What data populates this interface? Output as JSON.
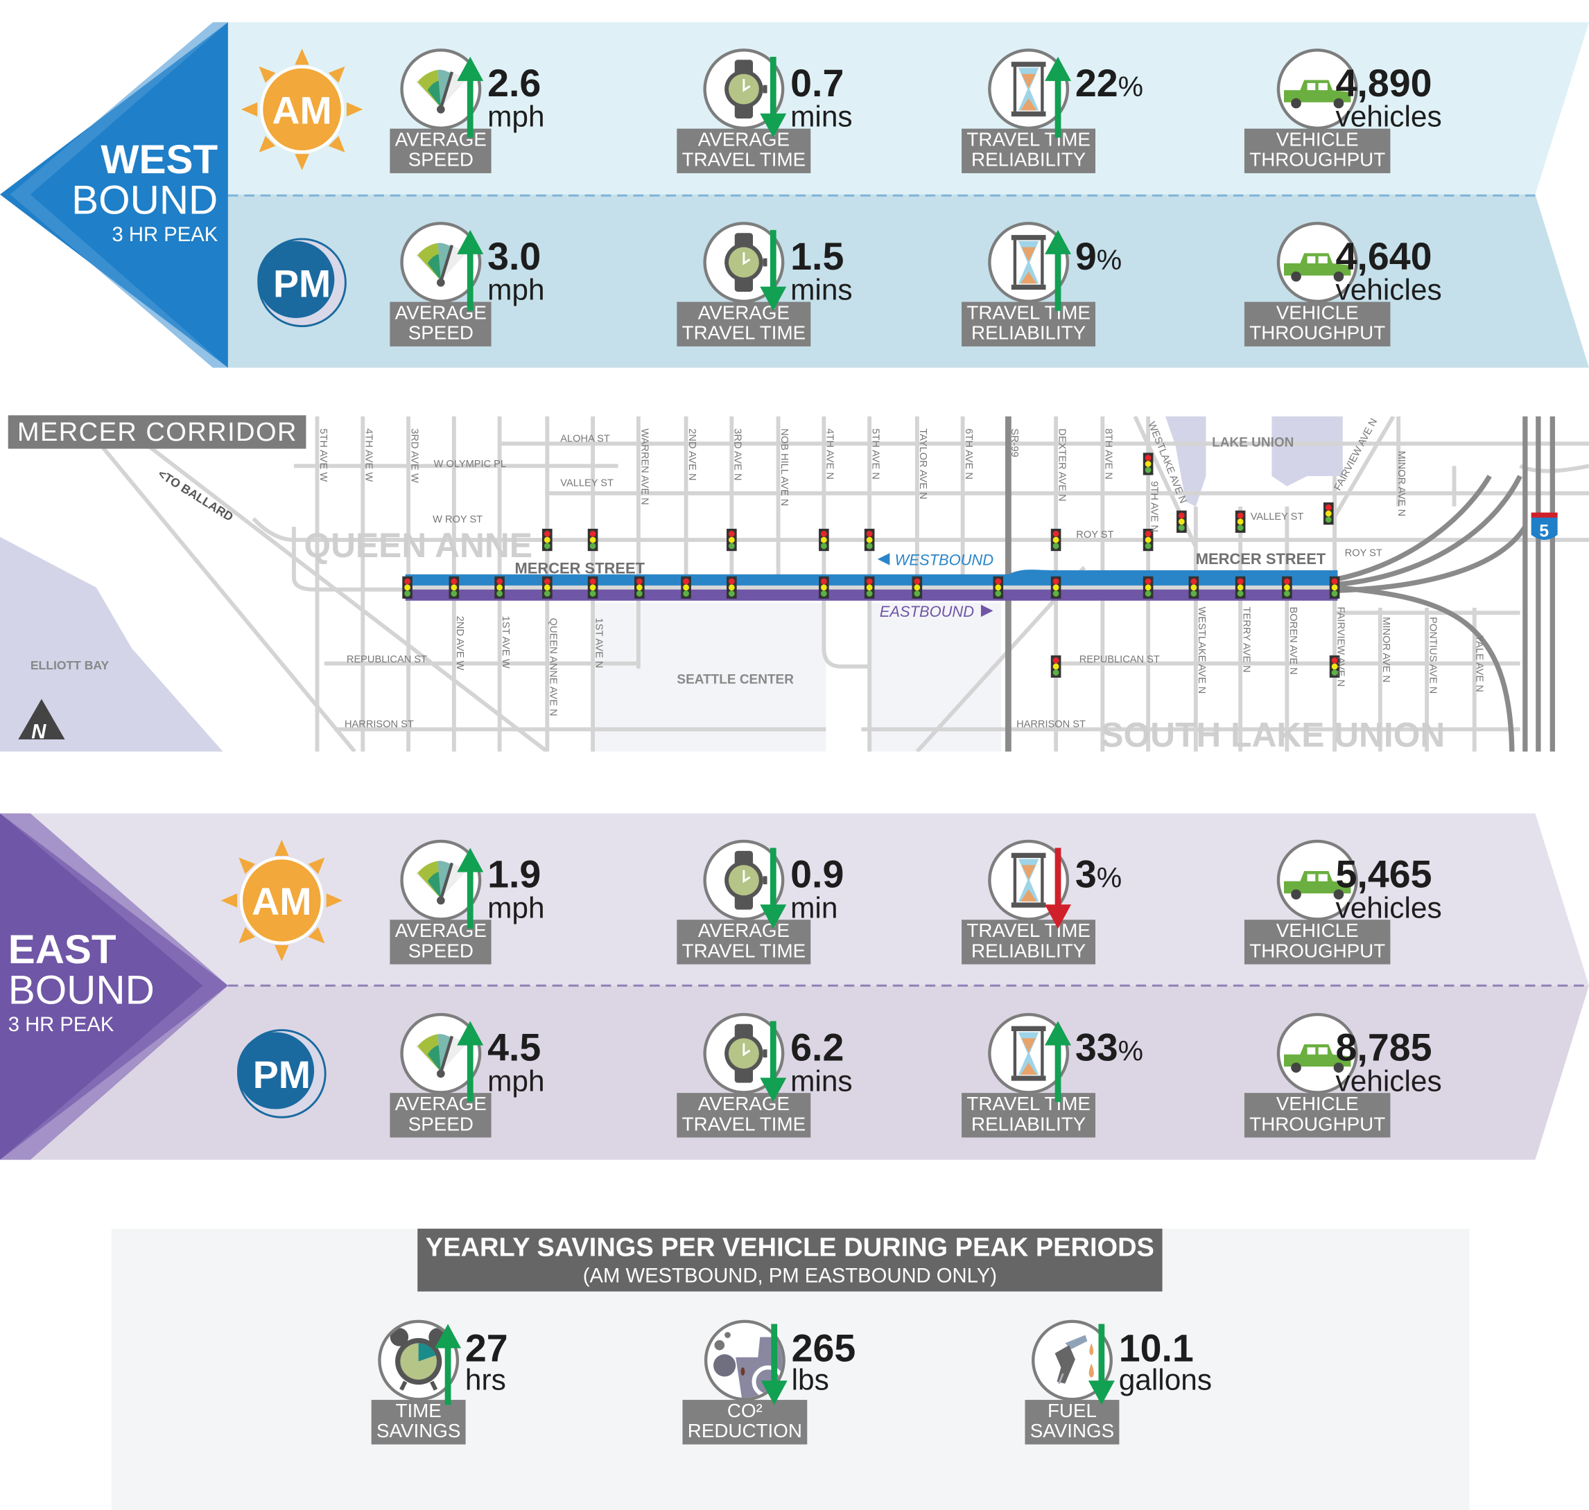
{
  "colors": {
    "west": "#1f7fc8",
    "east": "#6f56a6",
    "up": "#12a052",
    "down_good": "#12a052",
    "down_bad": "#d0202a",
    "label_bg": "#808080"
  },
  "westbound": {
    "title_line1": "WEST",
    "title_line2": "BOUND",
    "subtitle": "3 HR PEAK",
    "am": {
      "badge": "AM",
      "stats": [
        {
          "label": [
            "AVERAGE",
            "SPEED"
          ],
          "icon": "speedometer-icon",
          "direction": "up",
          "value": "2.6",
          "unit": "mph"
        },
        {
          "label": [
            "AVERAGE",
            "TRAVEL TIME"
          ],
          "icon": "watch-icon",
          "direction": "down",
          "value": "0.7",
          "unit": "mins"
        },
        {
          "label": [
            "TRAVEL TIME",
            "RELIABILITY"
          ],
          "icon": "hourglass-icon",
          "direction": "up",
          "value": "22",
          "suffix": "%",
          "unit": ""
        },
        {
          "label": [
            "VEHICLE",
            "THROUGHPUT"
          ],
          "icon": "car-icon",
          "direction": "none",
          "value": "4,890",
          "unit": "vehicles"
        }
      ]
    },
    "pm": {
      "badge": "PM",
      "stats": [
        {
          "label": [
            "AVERAGE",
            "SPEED"
          ],
          "icon": "speedometer-icon",
          "direction": "up",
          "value": "3.0",
          "unit": "mph"
        },
        {
          "label": [
            "AVERAGE",
            "TRAVEL TIME"
          ],
          "icon": "watch-icon",
          "direction": "down",
          "value": "1.5",
          "unit": "mins"
        },
        {
          "label": [
            "TRAVEL TIME",
            "RELIABILITY"
          ],
          "icon": "hourglass-icon",
          "direction": "up",
          "value": "9",
          "suffix": "%",
          "unit": ""
        },
        {
          "label": [
            "VEHICLE",
            "THROUGHPUT"
          ],
          "icon": "car-icon",
          "direction": "none",
          "value": "4,640",
          "unit": "vehicles"
        }
      ]
    }
  },
  "eastbound": {
    "title_line1": "EAST",
    "title_line2": "BOUND",
    "subtitle": "3 HR PEAK",
    "am": {
      "badge": "AM",
      "stats": [
        {
          "label": [
            "AVERAGE",
            "SPEED"
          ],
          "icon": "speedometer-icon",
          "direction": "up",
          "value": "1.9",
          "unit": "mph"
        },
        {
          "label": [
            "AVERAGE",
            "TRAVEL TIME"
          ],
          "icon": "watch-icon",
          "direction": "down",
          "value": "0.9",
          "unit": "min"
        },
        {
          "label": [
            "TRAVEL TIME",
            "RELIABILITY"
          ],
          "icon": "hourglass-icon",
          "direction": "down_bad",
          "value": "3",
          "suffix": "%",
          "unit": ""
        },
        {
          "label": [
            "VEHICLE",
            "THROUGHPUT"
          ],
          "icon": "car-icon",
          "direction": "none",
          "value": "5,465",
          "unit": "vehicles"
        }
      ]
    },
    "pm": {
      "badge": "PM",
      "stats": [
        {
          "label": [
            "AVERAGE",
            "SPEED"
          ],
          "icon": "speedometer-icon",
          "direction": "up",
          "value": "4.5",
          "unit": "mph"
        },
        {
          "label": [
            "AVERAGE",
            "TRAVEL TIME"
          ],
          "icon": "watch-icon",
          "direction": "down",
          "value": "6.2",
          "unit": "mins"
        },
        {
          "label": [
            "TRAVEL TIME",
            "RELIABILITY"
          ],
          "icon": "hourglass-icon",
          "direction": "up",
          "value": "33",
          "suffix": "%",
          "unit": ""
        },
        {
          "label": [
            "VEHICLE",
            "THROUGHPUT"
          ],
          "icon": "car-icon",
          "direction": "none",
          "value": "8,785",
          "unit": "vehicles"
        }
      ]
    }
  },
  "map": {
    "title": "MERCER CORRIDOR",
    "neighborhoods": {
      "queen_anne": "QUEEN ANNE",
      "south_lake_union": "SOUTH LAKE UNION",
      "seattle_center": "SEATTLE CENTER",
      "elliott_bay": "ELLIOTT BAY",
      "lake_union": "LAKE UNION"
    },
    "mercer_street": "MERCER STREET",
    "westbound": "WESTBOUND",
    "eastbound": "EASTBOUND",
    "to_ballard": "<TO BALLARD",
    "north": "N",
    "interstate": "5",
    "streets": {
      "aloha": "ALOHA ST",
      "w_olympic": "W OLYMPIC PL",
      "valley": "VALLEY ST",
      "valley2": "VALLEY ST",
      "w_roy": "W ROY ST",
      "roy": "ROY ST",
      "roy2": "ROY ST",
      "republican": "REPUBLICAN ST",
      "republican2": "REPUBLICAN ST",
      "harrison": "HARRISON ST",
      "harrison2": "HARRISON ST",
      "ave5w": "5TH AVE W",
      "ave4w": "4TH AVE W",
      "ave3w": "3RD AVE W",
      "warren": "WARREN AVE N",
      "ave2n": "2ND AVE N",
      "ave3n": "3RD AVE N",
      "nobhill": "NOB HILL AVE N",
      "ave4n": "4TH AVE N",
      "ave5n": "5TH AVE N",
      "taylor": "TAYLOR AVE N",
      "ave6n": "6TH AVE N",
      "sr99": "SR-99",
      "dexter": "DEXTER AVE N",
      "ave8n": "8TH AVE N",
      "westlake": "WESTLAKE AVE N",
      "ave9n": "9TH AVE N",
      "fairview": "FAIRVIEW AVE N",
      "minor": "MINOR AVE N",
      "ave2w": "2ND AVE W",
      "ave1w": "1ST AVE W",
      "queenanne": "QUEEN ANNE AVE N",
      "ave1n": "1ST AVE N",
      "westlake_s": "WESTLAKE AVE N",
      "terry": "TERRY AVE N",
      "boren": "BOREN AVE N",
      "fairview_s": "FAIRVIEW AVE N",
      "minor_s": "MINOR AVE N",
      "pontius": "PONTIUS AVE N",
      "yale": "YALE AVE N"
    }
  },
  "savings": {
    "title": "YEARLY SAVINGS PER VEHICLE DURING PEAK PERIODS",
    "subtitle": "(AM WESTBOUND, PM EASTBOUND ONLY)",
    "items": [
      {
        "label": [
          "TIME",
          "SAVINGS"
        ],
        "icon": "alarm-clock-icon",
        "direction": "up",
        "value": "27",
        "unit": "hrs"
      },
      {
        "label": [
          "CO²",
          "REDUCTION"
        ],
        "icon": "exhaust-icon",
        "direction": "down",
        "value": "265",
        "unit": "lbs"
      },
      {
        "label": [
          "FUEL",
          "SAVINGS"
        ],
        "icon": "fuel-nozzle-icon",
        "direction": "down",
        "value": "10.1",
        "unit": "gallons"
      }
    ]
  }
}
